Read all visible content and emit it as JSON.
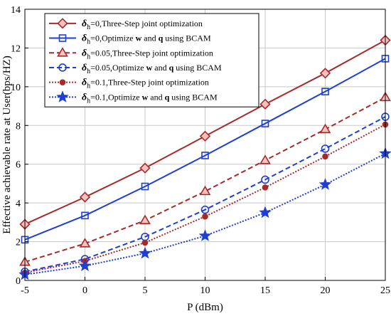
{
  "chart_data": {
    "type": "line",
    "x": [
      -5,
      0,
      5,
      10,
      15,
      20,
      25
    ],
    "xlim": [
      -5,
      25
    ],
    "ylim": [
      0,
      14
    ],
    "xticks": [
      "-5",
      "0",
      "5",
      "10",
      "15",
      "20",
      "25"
    ],
    "yticks": [
      "0",
      "2",
      "4",
      "6",
      "8",
      "10",
      "12",
      "14"
    ],
    "xlabel": "P (dBm)",
    "ylabel": "Effective achievable rate at User(bps/HZ)",
    "grid": true,
    "legend_position": "top-left",
    "series": [
      {
        "name": "δh=0,Three-Step joint optimization",
        "legend": {
          "sym": "δ",
          "sub": "h",
          "rest": "=0,Three-Step joint optimization"
        },
        "values": [
          2.9,
          4.3,
          5.8,
          7.45,
          9.1,
          10.7,
          12.4
        ],
        "color": "#a52a2a",
        "dash": "solid",
        "marker": "diamond",
        "marker_fill": "#f4c0c0"
      },
      {
        "name": "δh=0,Optimize w and q using BCAM",
        "legend": {
          "sym": "δ",
          "sub": "h",
          "rest": "=0,Optimize ",
          "w": "w",
          "and": " and ",
          "q": "q",
          "tail": " using BCAM"
        },
        "values": [
          2.1,
          3.35,
          4.85,
          6.45,
          8.1,
          9.75,
          11.45
        ],
        "color": "#1f3fd1",
        "dash": "solid",
        "marker": "square",
        "marker_fill": "none"
      },
      {
        "name": "δh=0.05,Three-Step joint optimization",
        "legend": {
          "sym": "δ",
          "sub": "h",
          "rest": "=0.05,Three-Step joint optimization"
        },
        "values": [
          0.95,
          1.9,
          3.1,
          4.6,
          6.2,
          7.8,
          9.45
        ],
        "color": "#a52a2a",
        "dash": "dashed",
        "marker": "triangle",
        "marker_fill": "#f4c0c0"
      },
      {
        "name": "δh=0.05,Optimize w and q using BCAM",
        "legend": {
          "sym": "δ",
          "sub": "h",
          "rest": "=0.05,Optimize ",
          "w": "w",
          "and": " and ",
          "q": "q",
          "tail": " using BCAM"
        },
        "values": [
          0.45,
          1.1,
          2.25,
          3.65,
          5.2,
          6.8,
          8.45
        ],
        "color": "#1f3fd1",
        "dash": "dashed",
        "marker": "circle",
        "marker_fill": "none"
      },
      {
        "name": "δh=0.1,Three-Step joint optimization",
        "legend": {
          "sym": "δ",
          "sub": "h",
          "rest": "=0.1,Three-Step joint optimization"
        },
        "values": [
          0.4,
          1.0,
          1.95,
          3.3,
          4.8,
          6.4,
          8.05
        ],
        "color": "#a52a2a",
        "dash": "dotted",
        "marker": "dot",
        "marker_fill": "#a52a2a"
      },
      {
        "name": "δh=0.1,Optimize w and q using BCAM",
        "legend": {
          "sym": "δ",
          "sub": "h",
          "rest": "=0.1,Optimize ",
          "w": "w",
          "and": " and ",
          "q": "q",
          "tail": " using BCAM"
        },
        "values": [
          0.3,
          0.75,
          1.4,
          2.3,
          3.5,
          4.95,
          6.55
        ],
        "color": "#1f3fd1",
        "dash": "dotted",
        "marker": "star",
        "marker_fill": "#1f3fd1"
      }
    ]
  }
}
